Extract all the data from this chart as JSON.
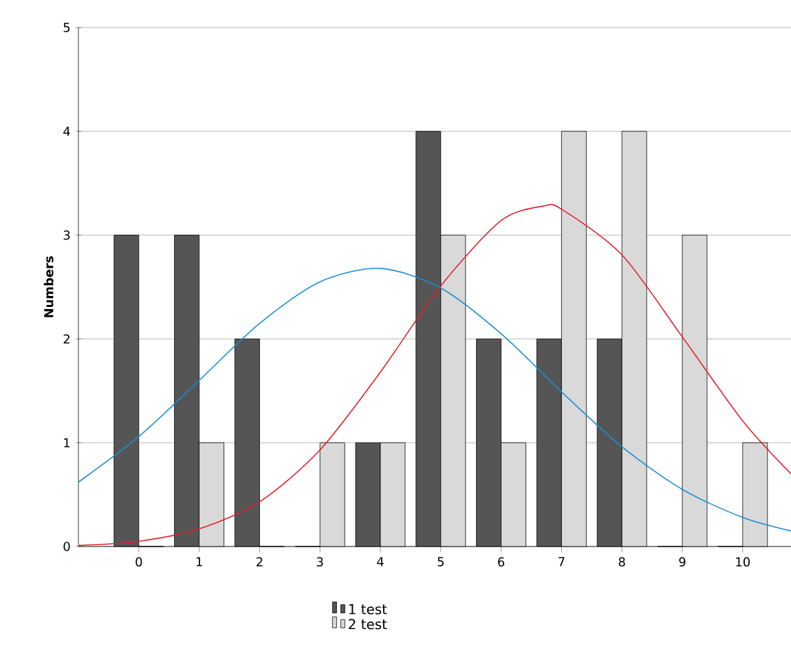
{
  "chart_data": {
    "type": "bar",
    "ylabel": "Numbers",
    "x": [
      0,
      1,
      2,
      3,
      4,
      5,
      6,
      7,
      8,
      9,
      10
    ],
    "xlim": [
      -1,
      10.8
    ],
    "xticks": [
      0,
      1,
      2,
      3,
      4,
      5,
      6,
      7,
      8,
      9,
      10
    ],
    "ylim": [
      0,
      5
    ],
    "yticks": [
      0,
      1,
      2,
      3,
      4,
      5
    ],
    "grid": "y",
    "legend": "bottom",
    "series": [
      {
        "name": "1 test",
        "color": "#555555",
        "values": [
          3,
          3,
          2,
          0,
          1,
          4,
          2,
          2,
          2,
          0,
          0
        ]
      },
      {
        "name": "2 test",
        "color": "#d9d9d9",
        "values": [
          0,
          1,
          0,
          1,
          1,
          3,
          1,
          4,
          4,
          3,
          1
        ]
      },
      {
        "type": "line",
        "color": "#1a8fd1",
        "x": [
          -1,
          0,
          1,
          2,
          3,
          4,
          5,
          6,
          7,
          8,
          9,
          10,
          10.8
        ],
        "values": [
          0.62,
          1.06,
          1.6,
          2.15,
          2.55,
          2.68,
          2.49,
          2.05,
          1.49,
          0.96,
          0.55,
          0.28,
          0.15
        ]
      },
      {
        "type": "line",
        "color": "#e3202a",
        "x": [
          -1,
          0,
          1,
          2,
          3,
          4,
          5,
          6,
          6.7,
          7,
          8,
          9,
          10,
          10.8
        ],
        "values": [
          0.01,
          0.05,
          0.17,
          0.43,
          0.93,
          1.68,
          2.51,
          3.14,
          3.28,
          3.25,
          2.81,
          2.02,
          1.21,
          0.7
        ]
      }
    ]
  }
}
